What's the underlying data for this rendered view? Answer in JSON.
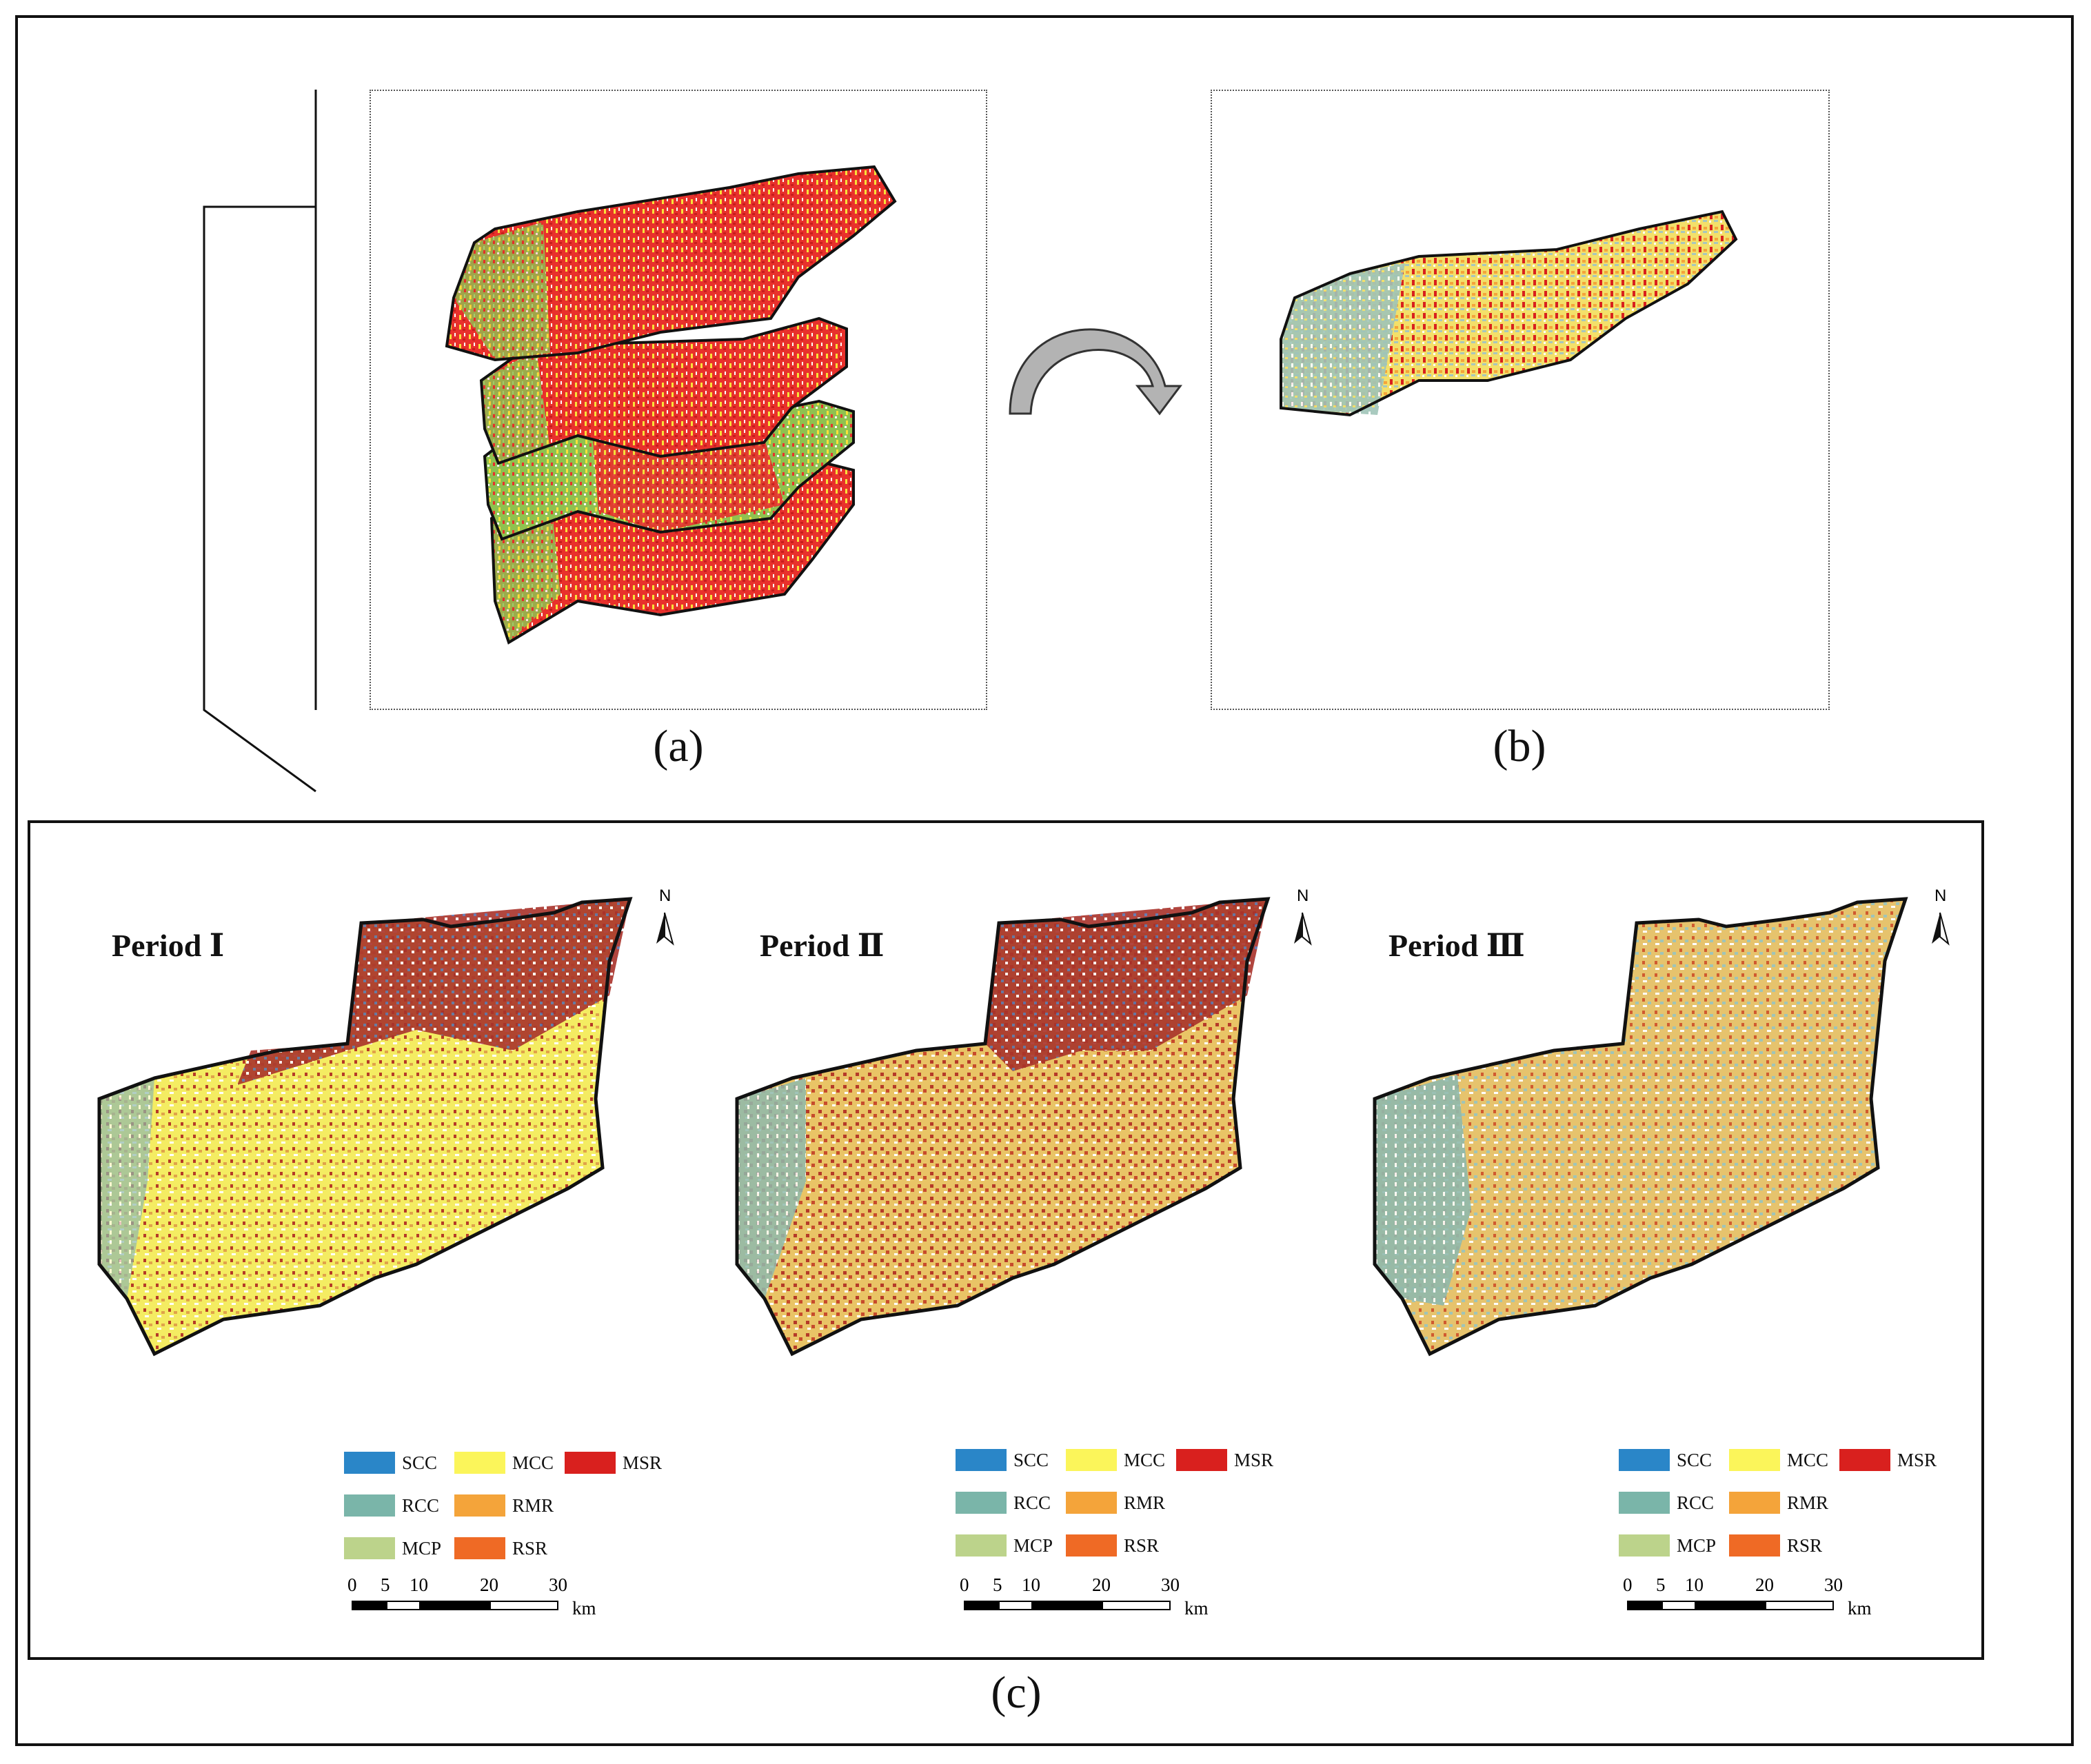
{
  "panels": {
    "a": {
      "label": "(a)"
    },
    "b": {
      "label": "(b)"
    },
    "c": {
      "label": "(c)"
    }
  },
  "periods": [
    {
      "title": "Period Ⅰ",
      "north": "N"
    },
    {
      "title": "Period Ⅱ",
      "north": "N"
    },
    {
      "title": "Period Ⅲ",
      "north": "N"
    }
  ],
  "legend": [
    {
      "code": "SCC",
      "color": "#2a86c8"
    },
    {
      "code": "MCC",
      "color": "#fbf55a"
    },
    {
      "code": "MSR",
      "color": "#d9201e"
    },
    {
      "code": "RCC",
      "color": "#7ab5a9"
    },
    {
      "code": "RMR",
      "color": "#f4a43a"
    },
    {
      "code": "MCP",
      "color": "#bcd38b"
    },
    {
      "code": "RSR",
      "color": "#ef6a25"
    }
  ],
  "scalebar": {
    "ticks": [
      "0",
      "5",
      "10",
      "20",
      "30"
    ],
    "unit": "km"
  },
  "colors": {
    "stack_red": "#e8312c",
    "stack_green": "#8fc150",
    "stack_yellow": "#f7e23a",
    "arrow_fill": "#b3b3b3"
  }
}
